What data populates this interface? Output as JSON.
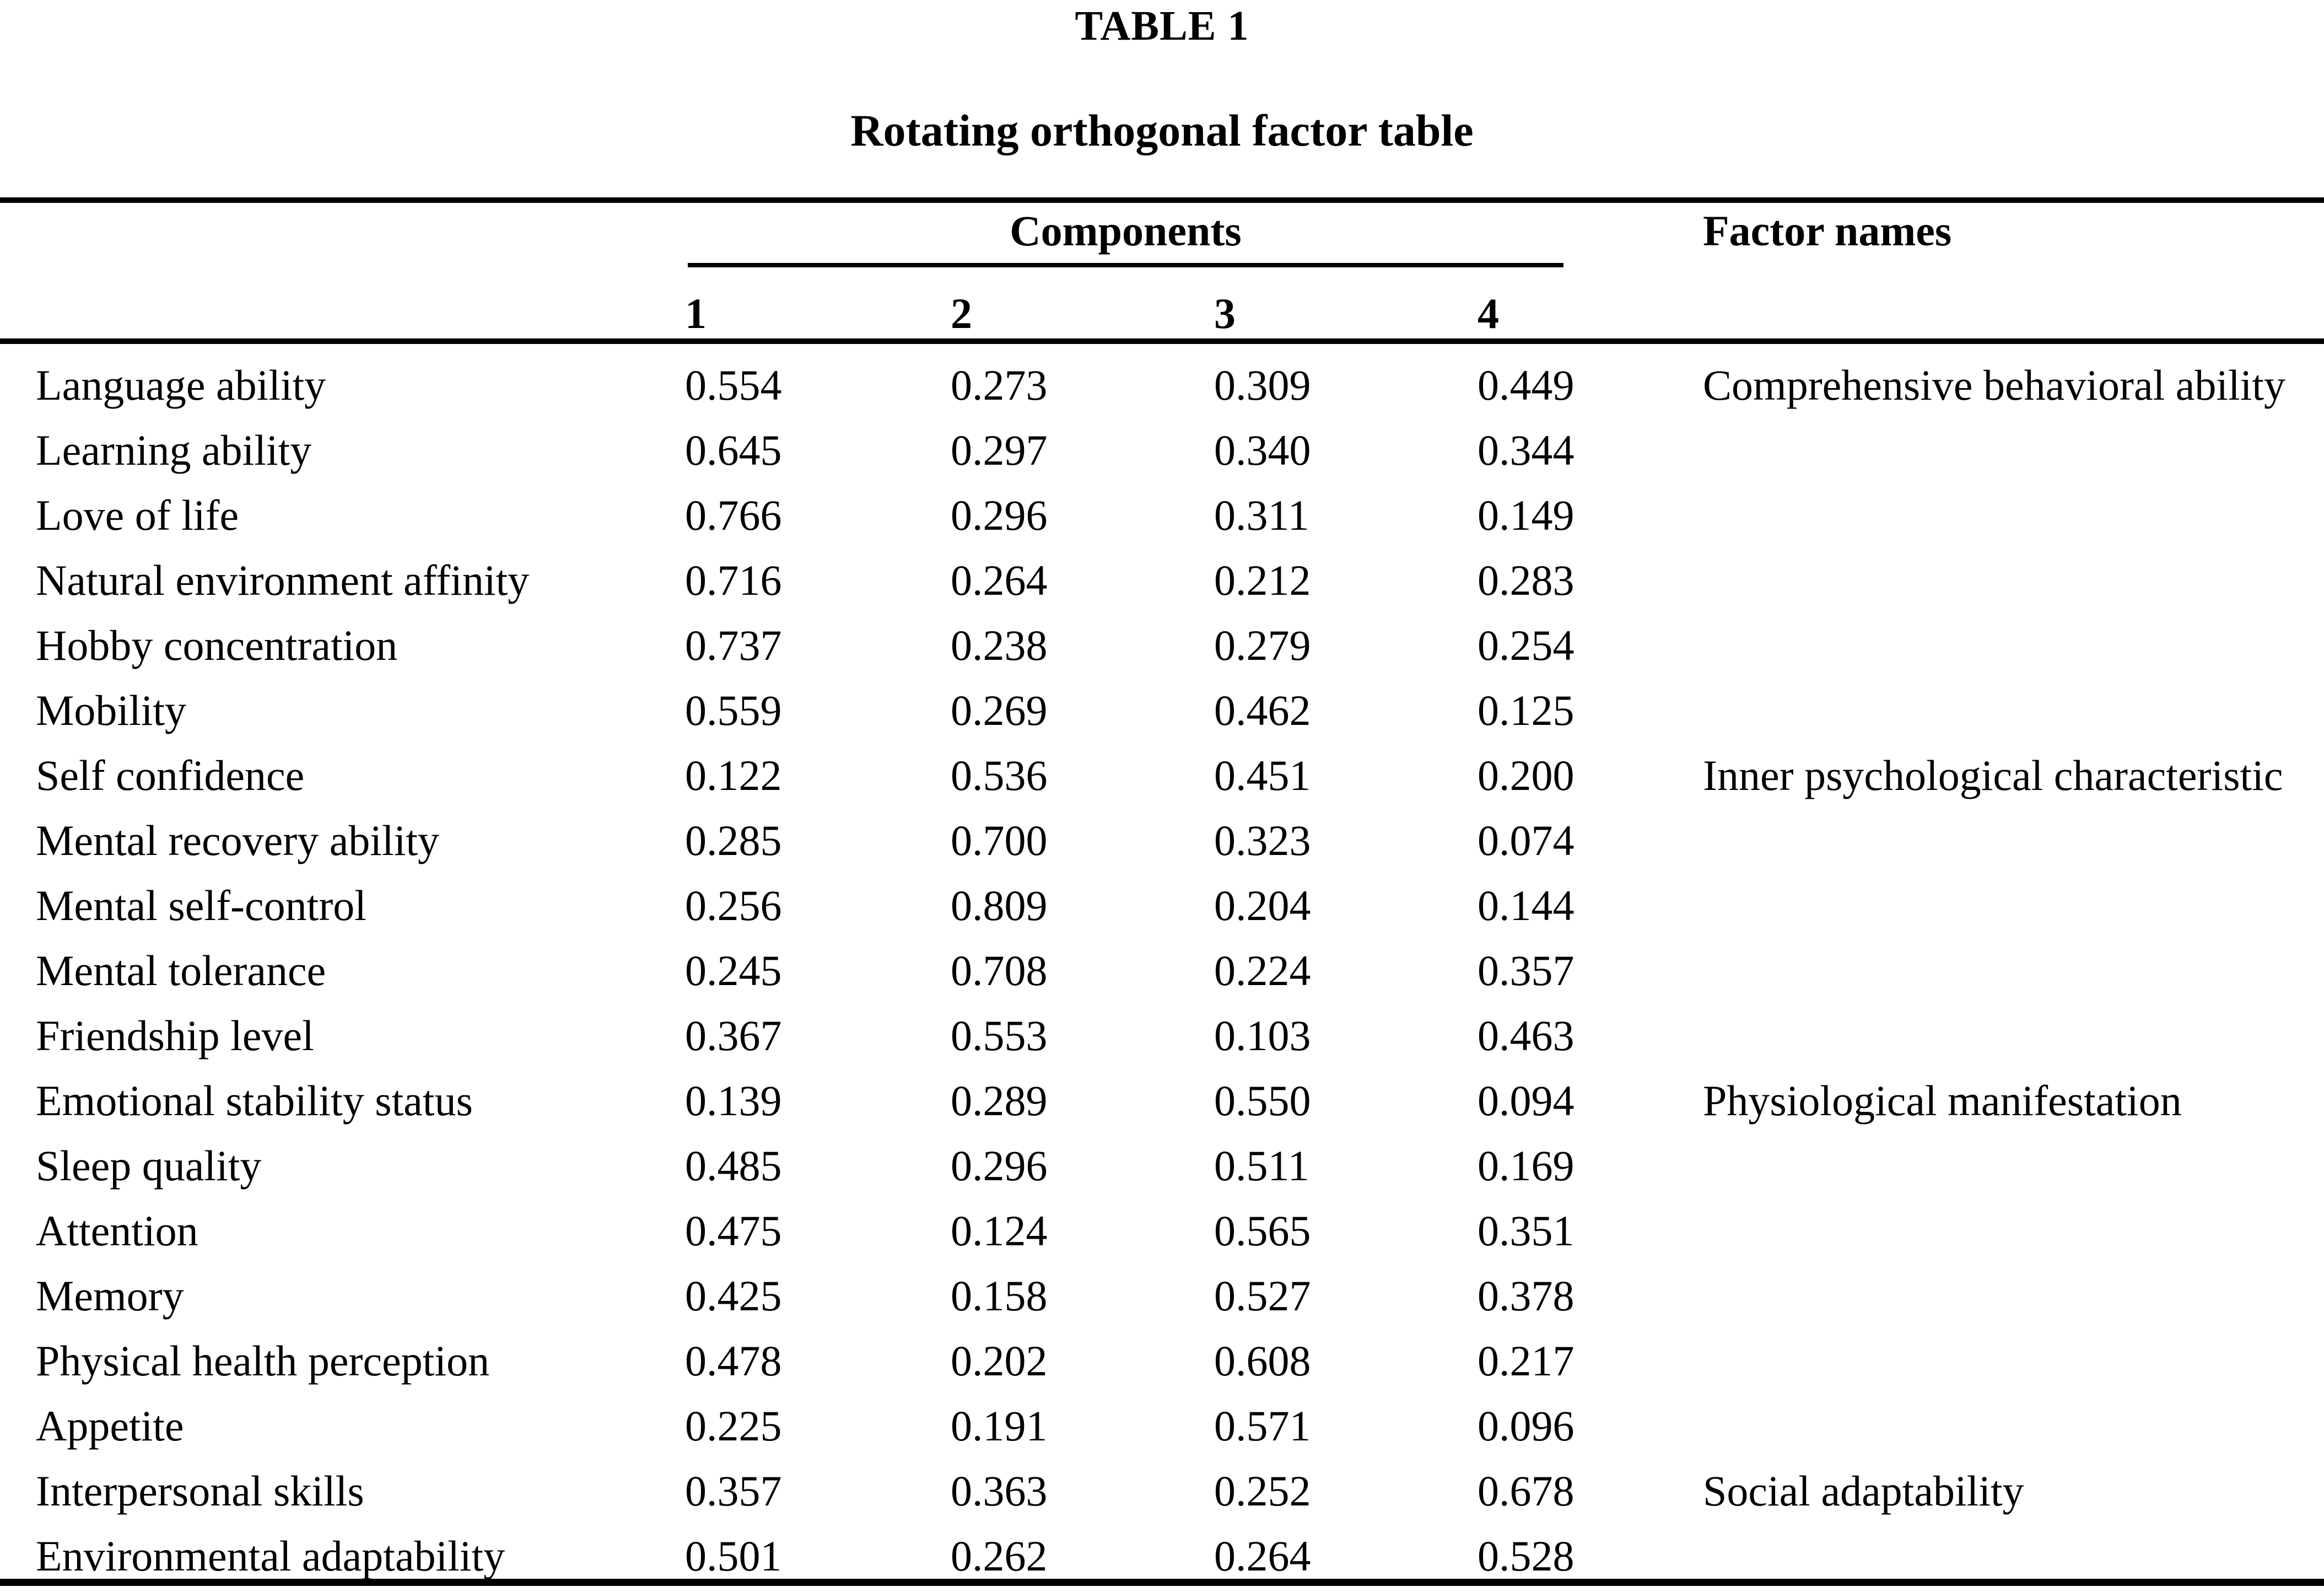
{
  "colors": {
    "background": "#ffffff",
    "text": "#000000",
    "rule": "#000000"
  },
  "table": {
    "label": "TABLE 1",
    "title": "Rotating orthogonal factor table",
    "components_header": "Components",
    "factor_names_header": "Factor names",
    "component_columns": [
      "1",
      "2",
      "3",
      "4"
    ],
    "rows": [
      {
        "label": "Language ability",
        "c1": "0.554",
        "c2": "0.273",
        "c3": "0.309",
        "c4": "0.449",
        "factor": "Comprehensive behavioral ability"
      },
      {
        "label": "Learning ability",
        "c1": "0.645",
        "c2": "0.297",
        "c3": "0.340",
        "c4": "0.344",
        "factor": ""
      },
      {
        "label": "Love of life",
        "c1": "0.766",
        "c2": "0.296",
        "c3": "0.311",
        "c4": "0.149",
        "factor": ""
      },
      {
        "label": "Natural environment affinity",
        "c1": "0.716",
        "c2": "0.264",
        "c3": "0.212",
        "c4": "0.283",
        "factor": ""
      },
      {
        "label": "Hobby concentration",
        "c1": "0.737",
        "c2": "0.238",
        "c3": "0.279",
        "c4": "0.254",
        "factor": ""
      },
      {
        "label": "Mobility",
        "c1": "0.559",
        "c2": "0.269",
        "c3": "0.462",
        "c4": "0.125",
        "factor": ""
      },
      {
        "label": "Self confidence",
        "c1": "0.122",
        "c2": "0.536",
        "c3": "0.451",
        "c4": "0.200",
        "factor": "Inner psychological characteristic"
      },
      {
        "label": "Mental recovery ability",
        "c1": "0.285",
        "c2": "0.700",
        "c3": "0.323",
        "c4": "0.074",
        "factor": ""
      },
      {
        "label": "Mental self-control",
        "c1": "0.256",
        "c2": "0.809",
        "c3": "0.204",
        "c4": "0.144",
        "factor": ""
      },
      {
        "label": "Mental tolerance",
        "c1": "0.245",
        "c2": "0.708",
        "c3": "0.224",
        "c4": "0.357",
        "factor": ""
      },
      {
        "label": "Friendship level",
        "c1": "0.367",
        "c2": "0.553",
        "c3": "0.103",
        "c4": "0.463",
        "factor": ""
      },
      {
        "label": "Emotional stability status",
        "c1": "0.139",
        "c2": "0.289",
        "c3": "0.550",
        "c4": "0.094",
        "factor": "Physiological manifestation"
      },
      {
        "label": "Sleep quality",
        "c1": "0.485",
        "c2": "0.296",
        "c3": "0.511",
        "c4": "0.169",
        "factor": ""
      },
      {
        "label": "Attention",
        "c1": "0.475",
        "c2": "0.124",
        "c3": "0.565",
        "c4": "0.351",
        "factor": ""
      },
      {
        "label": "Memory",
        "c1": "0.425",
        "c2": "0.158",
        "c3": "0.527",
        "c4": "0.378",
        "factor": ""
      },
      {
        "label": "Physical health perception",
        "c1": "0.478",
        "c2": "0.202",
        "c3": "0.608",
        "c4": "0.217",
        "factor": ""
      },
      {
        "label": "Appetite",
        "c1": "0.225",
        "c2": "0.191",
        "c3": "0.571",
        "c4": "0.096",
        "factor": ""
      },
      {
        "label": "Interpersonal skills",
        "c1": "0.357",
        "c2": "0.363",
        "c3": "0.252",
        "c4": "0.678",
        "factor": "Social adaptability"
      },
      {
        "label": "Environmental adaptability",
        "c1": "0.501",
        "c2": "0.262",
        "c3": "0.264",
        "c4": "0.528",
        "factor": ""
      }
    ]
  }
}
